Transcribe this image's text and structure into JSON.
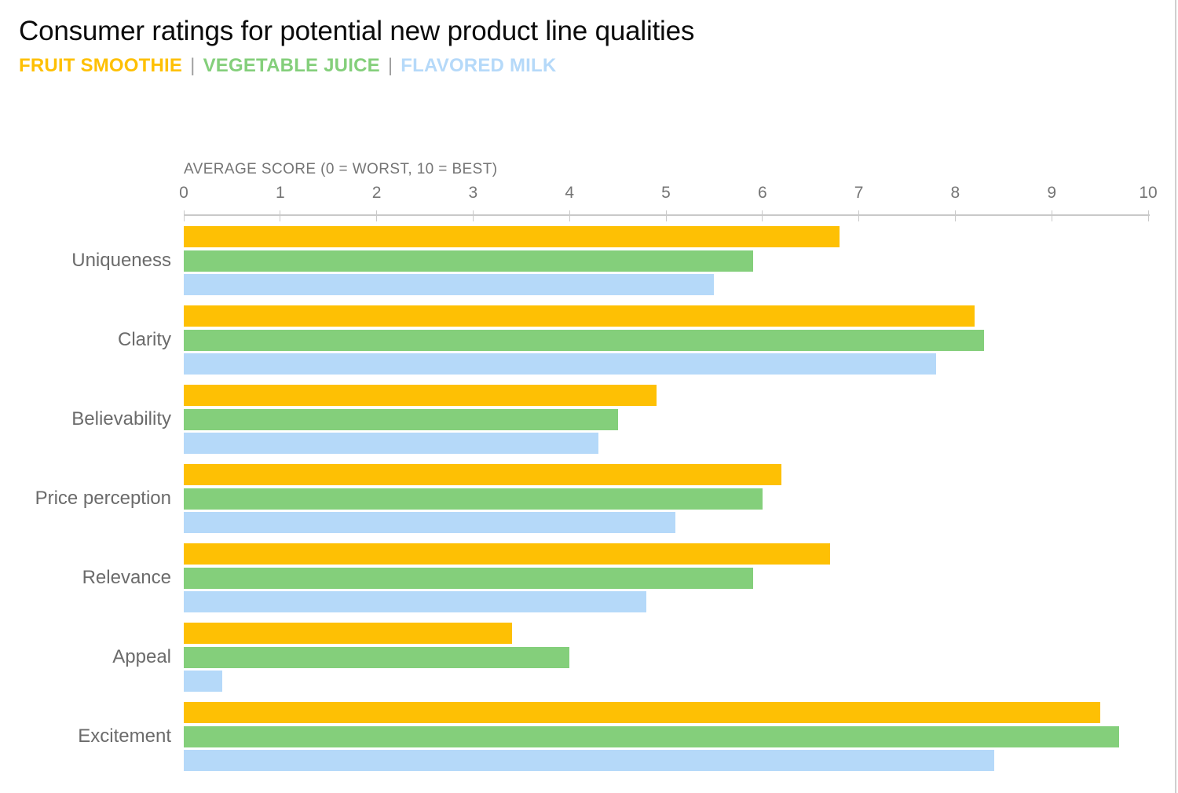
{
  "chart_data": {
    "type": "bar",
    "orientation": "horizontal",
    "title": "Consumer ratings for potential new product line qualities",
    "axis_label": "AVERAGE SCORE (0 = WORST, 10 = BEST)",
    "categories": [
      "Uniqueness",
      "Clarity",
      "Believability",
      "Price perception",
      "Relevance",
      "Appeal",
      "Excitement"
    ],
    "series": [
      {
        "name": "FRUIT SMOOTHIE",
        "color": "#FEC004",
        "values": [
          6.8,
          8.2,
          4.9,
          6.2,
          6.7,
          3.4,
          9.5
        ]
      },
      {
        "name": "VEGETABLE JUICE",
        "color": "#84CF7B",
        "values": [
          5.9,
          8.3,
          4.5,
          6.0,
          5.9,
          4.0,
          9.7
        ]
      },
      {
        "name": "FLAVORED MILK",
        "color": "#B5D9F9",
        "values": [
          5.5,
          7.8,
          4.3,
          5.1,
          4.8,
          0.4,
          8.4
        ]
      }
    ],
    "xlim": [
      0,
      10
    ],
    "ticks": [
      0,
      1,
      2,
      3,
      4,
      5,
      6,
      7,
      8,
      9,
      10
    ],
    "grid": false,
    "legend_position": "top",
    "legend_separator": "|"
  }
}
